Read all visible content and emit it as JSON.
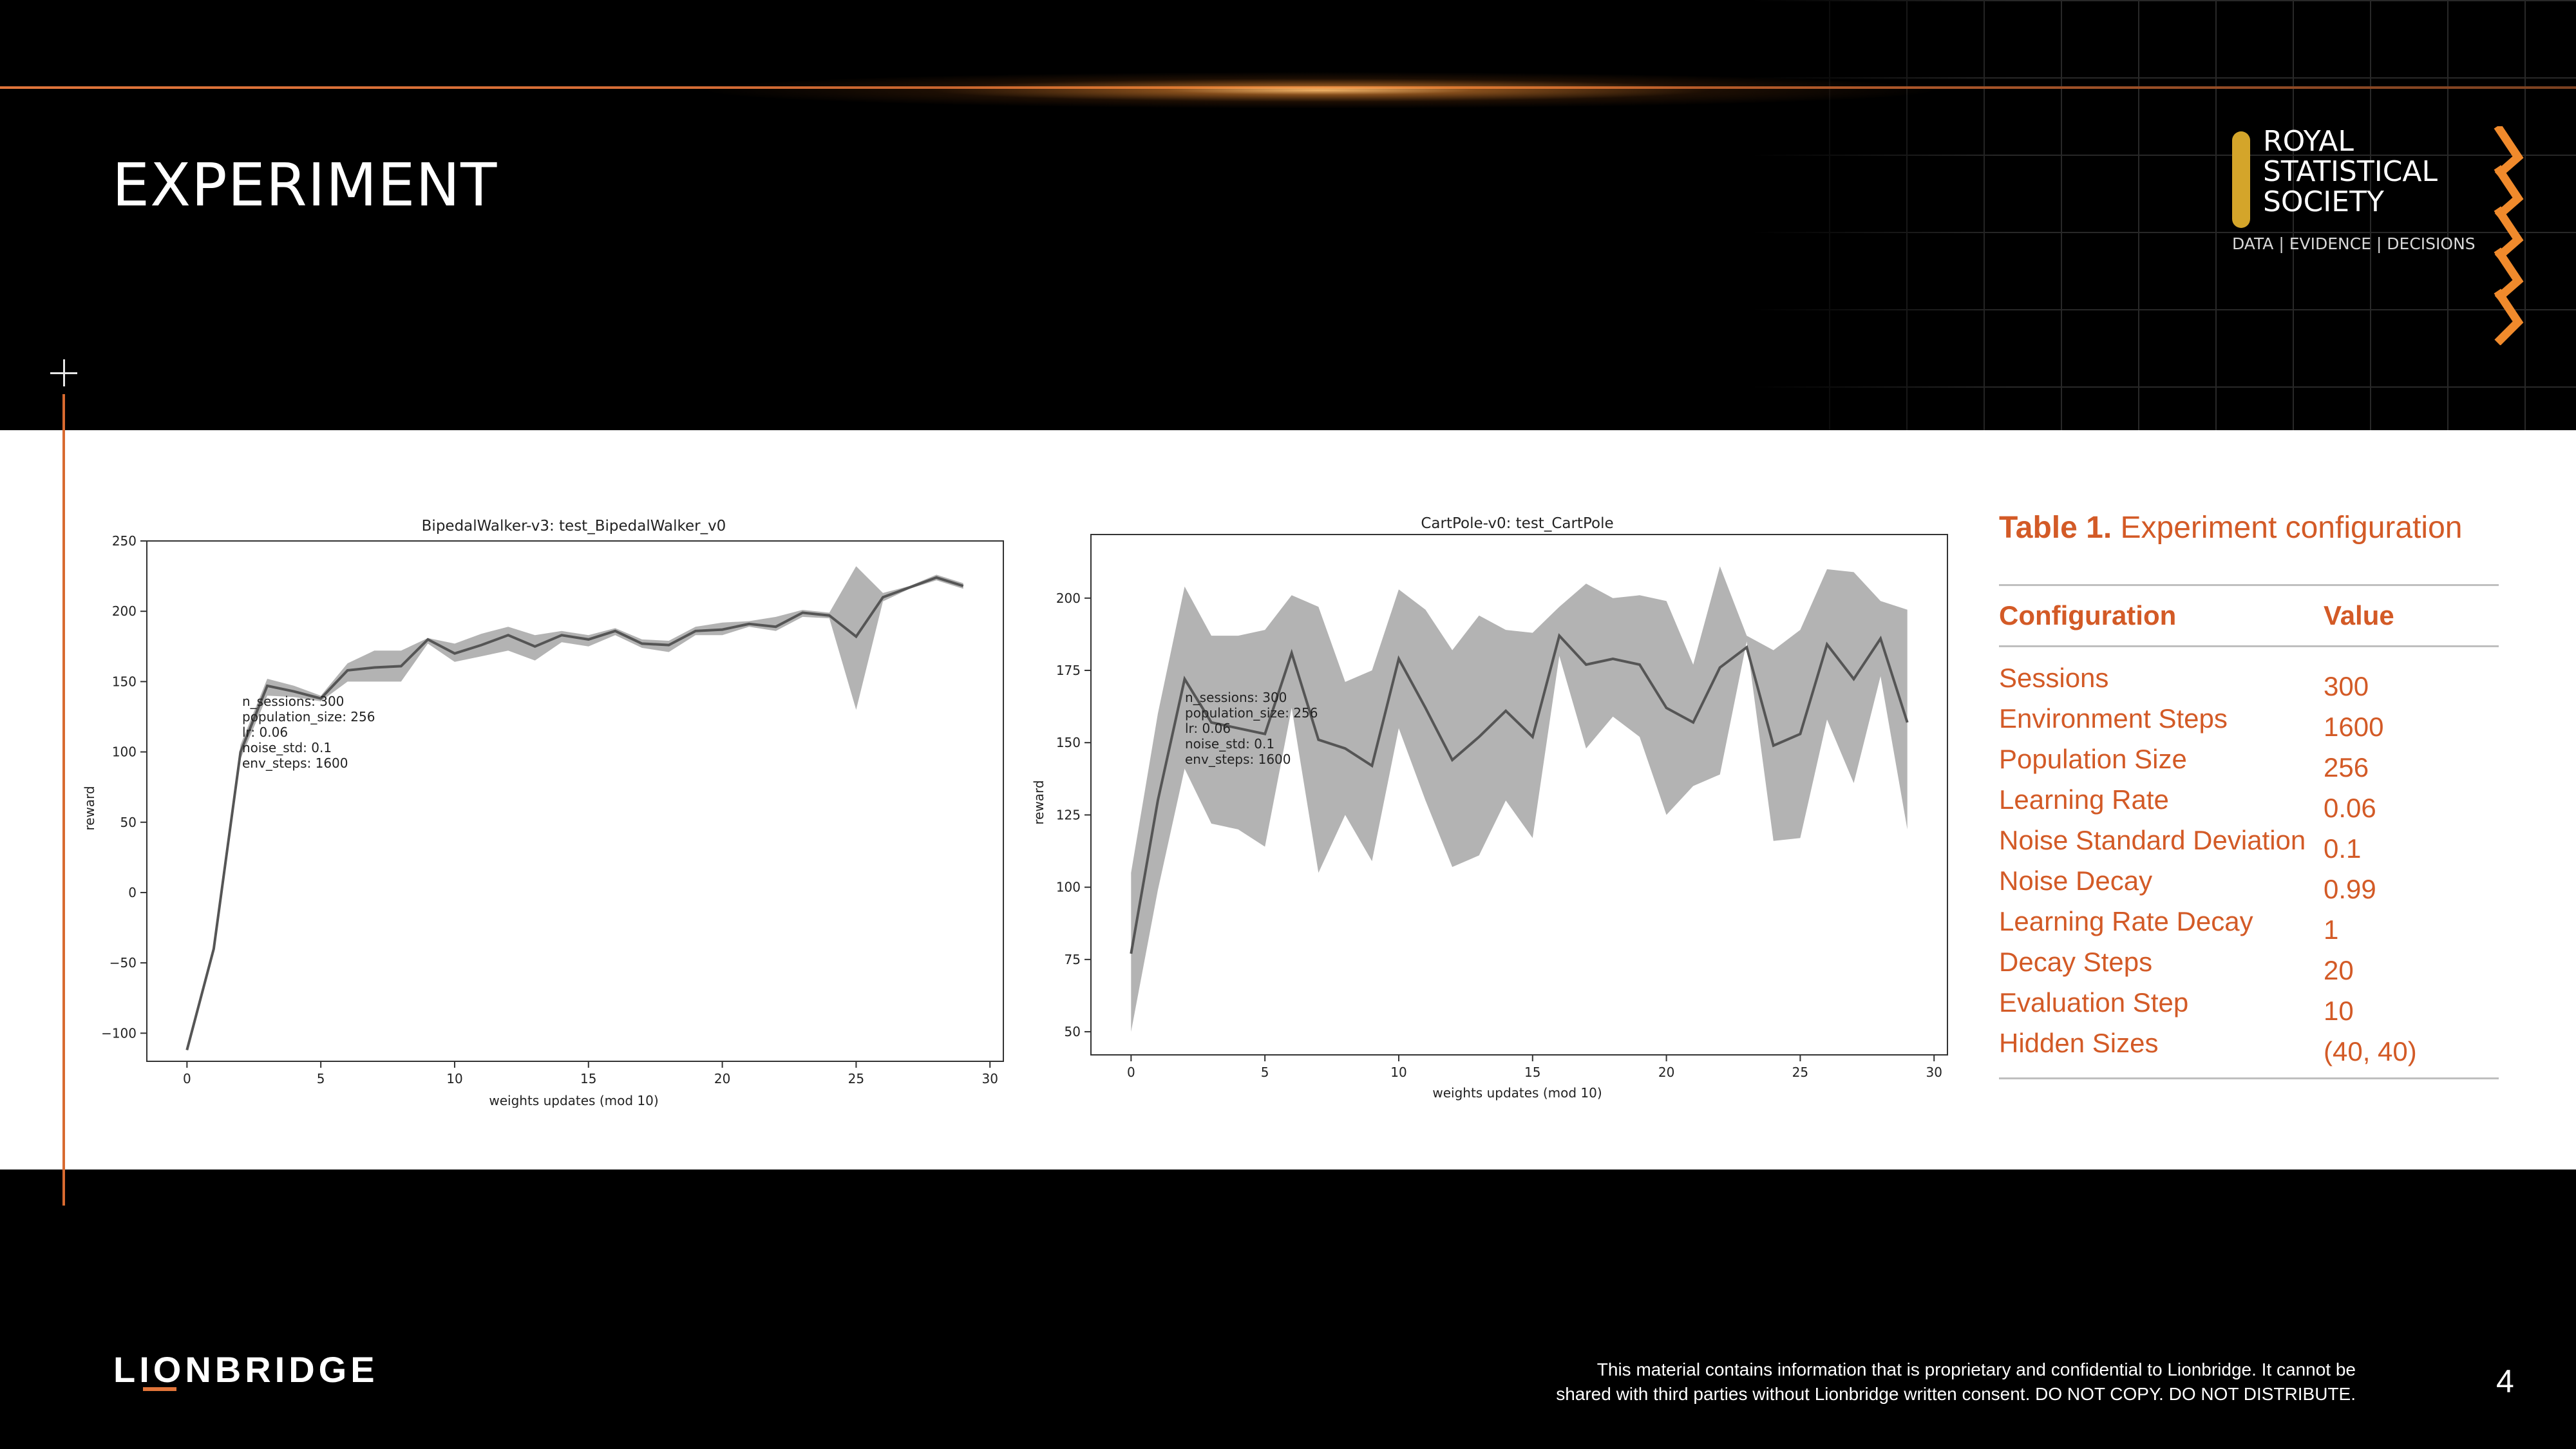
{
  "slide": {
    "title": "EXPERIMENT",
    "logo": {
      "lines": [
        "ROYAL",
        "STATISTICAL",
        "SOCIETY"
      ],
      "tagline": "DATA | EVIDENCE | DECISIONS"
    },
    "accent_color": "#d35a26",
    "footer": {
      "brand": "LIONBRIDGE",
      "legal_line1": "This material contains information that is proprietary and confidential to Lionbridge. It cannot be",
      "legal_line2": "shared with third parties without Lionbridge written consent. DO NOT COPY. DO NOT DISTRIBUTE.",
      "page_number": "4"
    }
  },
  "table": {
    "caption_bold": "Table 1.",
    "caption_rest": " Experiment configuration",
    "headers": [
      "Configuration",
      "Value"
    ],
    "rows": [
      [
        "Sessions",
        "300"
      ],
      [
        "Environment Steps",
        "1600"
      ],
      [
        "Population Size",
        "256"
      ],
      [
        "Learning Rate",
        "0.06"
      ],
      [
        "Noise Standard Deviation",
        "0.1"
      ],
      [
        "Noise Decay",
        "0.99"
      ],
      [
        "Learning Rate Decay",
        "1"
      ],
      [
        "Decay Steps",
        "20"
      ],
      [
        "Evaluation Step",
        "10"
      ],
      [
        "Hidden Sizes",
        "(40, 40)"
      ]
    ]
  },
  "chart_data": [
    {
      "type": "area",
      "title": "BipedalWalker-v3: test_BipedalWalker_v0",
      "xlabel": "weights updates (mod 10)",
      "ylabel": "reward",
      "xlim": [
        -1.5,
        30.5
      ],
      "ylim": [
        -120,
        250
      ],
      "xticks": [
        0,
        5,
        10,
        15,
        20,
        25,
        30
      ],
      "yticks": [
        -100,
        -50,
        0,
        50,
        100,
        150,
        200,
        250
      ],
      "grid": false,
      "annotation": [
        "n_sessions: 300",
        "population_size: 256",
        "lr: 0.06",
        "noise_std: 0.1",
        "env_steps: 1600"
      ],
      "x": [
        0,
        1,
        2,
        3,
        4,
        5,
        6,
        7,
        8,
        9,
        10,
        11,
        12,
        13,
        14,
        15,
        16,
        17,
        18,
        19,
        20,
        21,
        22,
        23,
        24,
        25,
        26,
        27,
        28,
        29
      ],
      "series": [
        {
          "name": "mean",
          "values": [
            -112,
            -40,
            100,
            147,
            143,
            138,
            158,
            160,
            161,
            180,
            170,
            176,
            183,
            175,
            183,
            180,
            186,
            177,
            176,
            186,
            187,
            191,
            189,
            199,
            197,
            182,
            210,
            217,
            224,
            218
          ]
        },
        {
          "name": "upper",
          "values": [
            -112,
            -40,
            105,
            152,
            147,
            140,
            163,
            172,
            172,
            181,
            177,
            184,
            189,
            183,
            186,
            183,
            188,
            180,
            179,
            189,
            192,
            193,
            196,
            201,
            199,
            232,
            213,
            218,
            226,
            220
          ]
        },
        {
          "name": "lower",
          "values": [
            -112,
            -40,
            95,
            140,
            139,
            136,
            150,
            150,
            150,
            177,
            164,
            168,
            172,
            165,
            178,
            175,
            183,
            174,
            171,
            183,
            183,
            189,
            186,
            196,
            195,
            130,
            207,
            216,
            222,
            216
          ]
        }
      ]
    },
    {
      "type": "area",
      "title": "CartPole-v0: test_CartPole",
      "xlabel": "weights updates (mod 10)",
      "ylabel": "reward",
      "xlim": [
        -1.5,
        30.5
      ],
      "ylim": [
        42,
        222
      ],
      "xticks": [
        0,
        5,
        10,
        15,
        20,
        25,
        30
      ],
      "yticks": [
        50,
        75,
        100,
        125,
        150,
        175,
        200
      ],
      "grid": false,
      "annotation": [
        "n_sessions: 300",
        "population_size: 256",
        "lr: 0.06",
        "noise_std: 0.1",
        "env_steps: 1600"
      ],
      "x": [
        0,
        1,
        2,
        3,
        4,
        5,
        6,
        7,
        8,
        9,
        10,
        11,
        12,
        13,
        14,
        15,
        16,
        17,
        18,
        19,
        20,
        21,
        22,
        23,
        24,
        25,
        26,
        27,
        28,
        29
      ],
      "series": [
        {
          "name": "mean",
          "values": [
            77,
            130,
            172,
            157,
            155,
            153,
            181,
            151,
            148,
            142,
            179,
            162,
            144,
            152,
            161,
            152,
            187,
            177,
            179,
            177,
            162,
            157,
            176,
            183,
            149,
            153,
            184,
            172,
            186,
            157
          ]
        },
        {
          "name": "upper",
          "values": [
            105,
            160,
            204,
            187,
            187,
            189,
            201,
            197,
            171,
            175,
            203,
            196,
            182,
            194,
            189,
            188,
            197,
            205,
            200,
            201,
            199,
            177,
            211,
            187,
            182,
            189,
            210,
            209,
            199,
            196
          ]
        },
        {
          "name": "lower",
          "values": [
            50,
            99,
            141,
            122,
            120,
            114,
            162,
            105,
            125,
            109,
            155,
            130,
            107,
            111,
            130,
            117,
            180,
            148,
            159,
            152,
            125,
            135,
            139,
            185,
            116,
            117,
            158,
            136,
            173,
            120
          ]
        }
      ]
    }
  ]
}
